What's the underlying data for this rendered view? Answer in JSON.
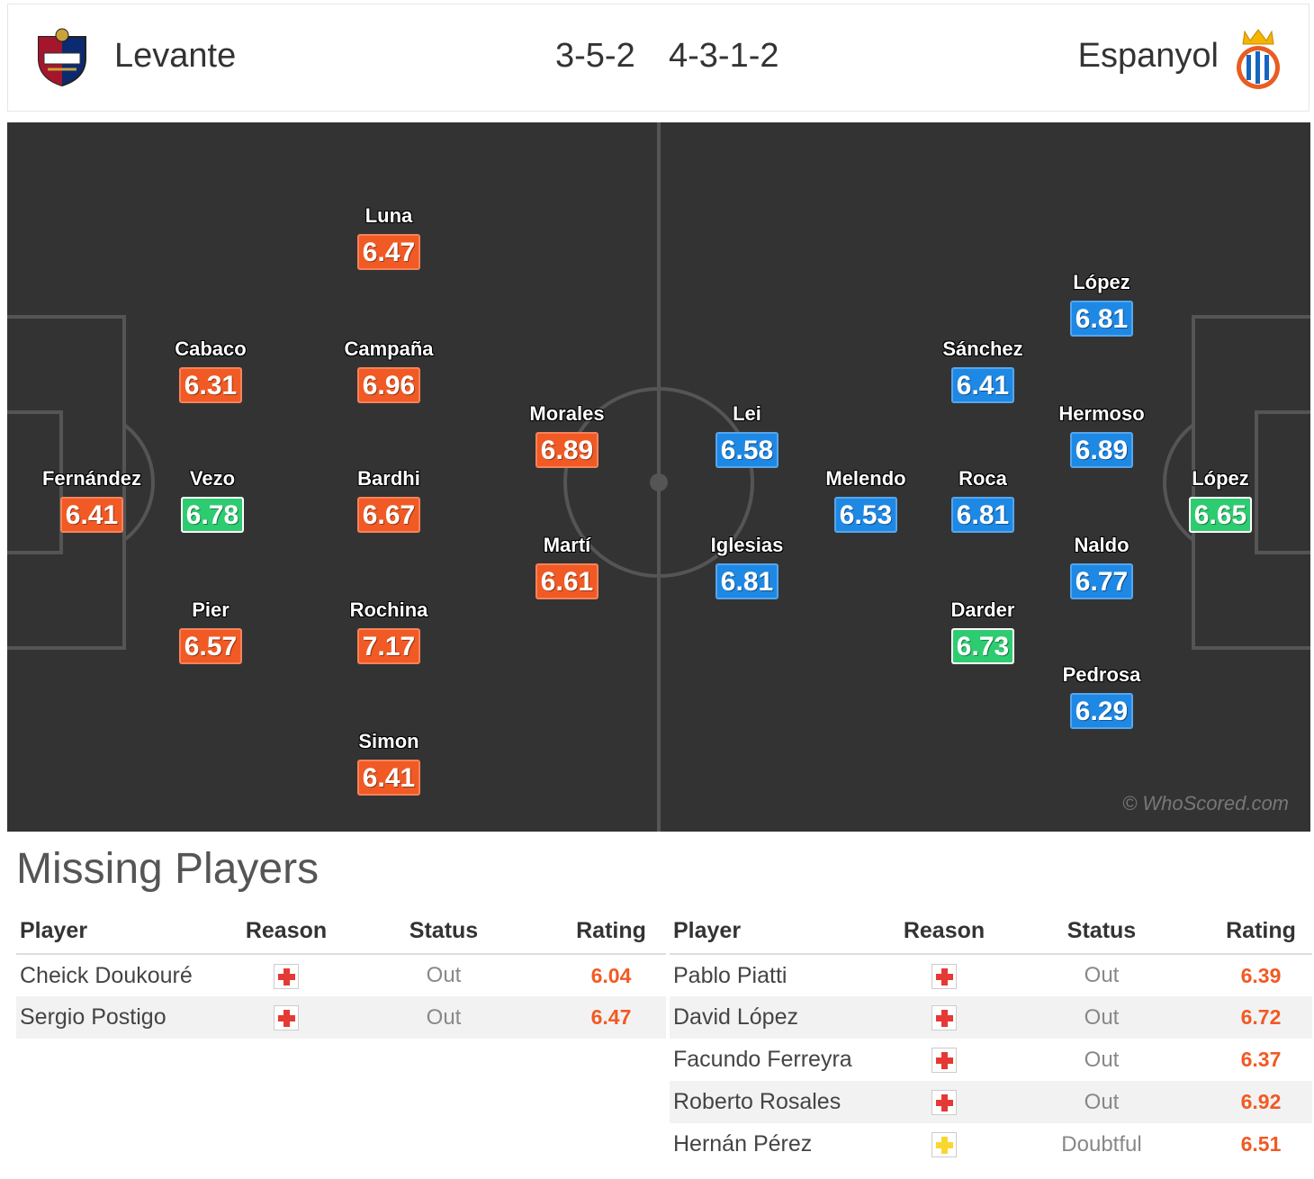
{
  "header": {
    "home_team": "Levante",
    "home_formation": "3-5-2",
    "away_formation": "4-3-1-2",
    "away_team": "Espanyol",
    "home_crest_icon": "levante-crest-icon",
    "away_crest_icon": "espanyol-crest-icon"
  },
  "colors": {
    "home_rating": "#f15a24",
    "away_rating": "#1e88e5",
    "best_rating": "#2ecc71",
    "pitch": "#333333",
    "injury_icon": "#e53935",
    "doubtful_icon": "#f9d72f"
  },
  "pitch": {
    "watermark": "© WhoScored.com",
    "home_players": [
      {
        "name": "Fernández",
        "rating": "6.41",
        "best": false
      },
      {
        "name": "Cabaco",
        "rating": "6.31",
        "best": false
      },
      {
        "name": "Vezo",
        "rating": "6.78",
        "best": true
      },
      {
        "name": "Pier",
        "rating": "6.57",
        "best": false
      },
      {
        "name": "Luna",
        "rating": "6.47",
        "best": false
      },
      {
        "name": "Campaña",
        "rating": "6.96",
        "best": false
      },
      {
        "name": "Bardhi",
        "rating": "6.67",
        "best": false
      },
      {
        "name": "Rochina",
        "rating": "7.17",
        "best": false
      },
      {
        "name": "Simon",
        "rating": "6.41",
        "best": false
      },
      {
        "name": "Morales",
        "rating": "6.89",
        "best": false
      },
      {
        "name": "Martí",
        "rating": "6.61",
        "best": false
      }
    ],
    "away_players": [
      {
        "name": "López",
        "rating": "6.65",
        "best": true
      },
      {
        "name": "López",
        "rating": "6.81",
        "best": false
      },
      {
        "name": "Hermoso",
        "rating": "6.89",
        "best": false
      },
      {
        "name": "Naldo",
        "rating": "6.77",
        "best": false
      },
      {
        "name": "Pedrosa",
        "rating": "6.29",
        "best": false
      },
      {
        "name": "Sánchez",
        "rating": "6.41",
        "best": false
      },
      {
        "name": "Roca",
        "rating": "6.81",
        "best": false
      },
      {
        "name": "Darder",
        "rating": "6.73",
        "best": true
      },
      {
        "name": "Melendo",
        "rating": "6.53",
        "best": false
      },
      {
        "name": "Lei",
        "rating": "6.58",
        "best": false
      },
      {
        "name": "Iglesias",
        "rating": "6.81",
        "best": false
      }
    ]
  },
  "missing": {
    "title": "Missing Players",
    "headers": {
      "player": "Player",
      "reason": "Reason",
      "status": "Status",
      "rating": "Rating"
    },
    "home": [
      {
        "player": "Cheick Doukouré",
        "reason_icon": "injury-icon",
        "status": "Out",
        "rating": "6.04"
      },
      {
        "player": "Sergio Postigo",
        "reason_icon": "injury-icon",
        "status": "Out",
        "rating": "6.47"
      }
    ],
    "away": [
      {
        "player": "Pablo Piatti",
        "reason_icon": "injury-icon",
        "status": "Out",
        "rating": "6.39"
      },
      {
        "player": "David López",
        "reason_icon": "injury-icon",
        "status": "Out",
        "rating": "6.72"
      },
      {
        "player": "Facundo Ferreyra",
        "reason_icon": "injury-icon",
        "status": "Out",
        "rating": "6.37"
      },
      {
        "player": "Roberto Rosales",
        "reason_icon": "injury-icon",
        "status": "Out",
        "rating": "6.92"
      },
      {
        "player": "Hernán Pérez",
        "reason_icon": "doubtful-icon",
        "status": "Doubtful",
        "rating": "6.51"
      }
    ]
  }
}
